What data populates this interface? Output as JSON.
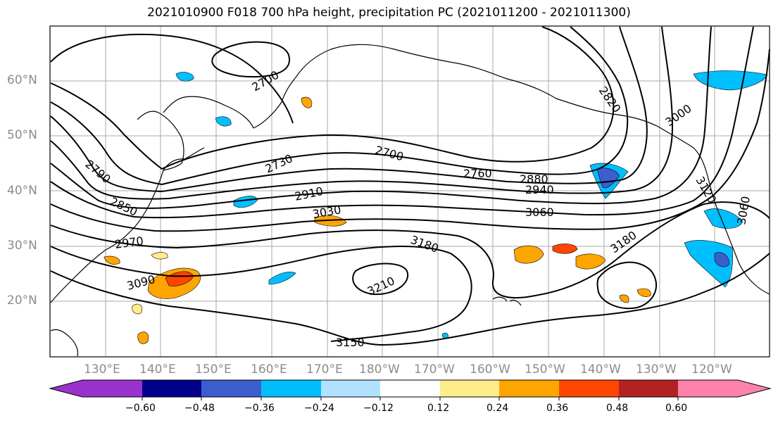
{
  "title": "2021010900 F018 700 hPa height, precipitation PC (2021011200 - 2021011300)",
  "lat_labels": [
    "60°N",
    "50°N",
    "40°N",
    "30°N",
    "20°N"
  ],
  "lon_labels": [
    "130°E",
    "140°E",
    "150°E",
    "160°E",
    "170°E",
    "180°W",
    "170°W",
    "160°W",
    "150°W",
    "140°W",
    "130°W",
    "120°W"
  ],
  "contour_labels": [
    "2700",
    "2820",
    "3000",
    "2790",
    "2730",
    "2700",
    "2760",
    "2880",
    "2940",
    "2910",
    "3060",
    "2850",
    "3030",
    "2970",
    "3180",
    "3120",
    "3060",
    "3180",
    "3090",
    "3210",
    "3150"
  ],
  "colorbar": {
    "ticks": [
      "−0.60",
      "−0.48",
      "−0.36",
      "−0.24",
      "−0.12",
      "0.12",
      "0.24",
      "0.36",
      "0.48",
      "0.60"
    ],
    "colors": [
      "#9a32cd",
      "#00008b",
      "#3a5fcd",
      "#00bfff",
      "#b0e2ff",
      "#ffffff",
      "#ffec8b",
      "#ffa500",
      "#ff4500",
      "#b22222",
      "#ff82ab"
    ]
  },
  "precip_colors": {
    "positive_light": "#ffec8b",
    "positive": "#ffa500",
    "positive_strong": "#ff4500",
    "negative": "#00bfff",
    "negative_strong": "#3a5fcd"
  }
}
